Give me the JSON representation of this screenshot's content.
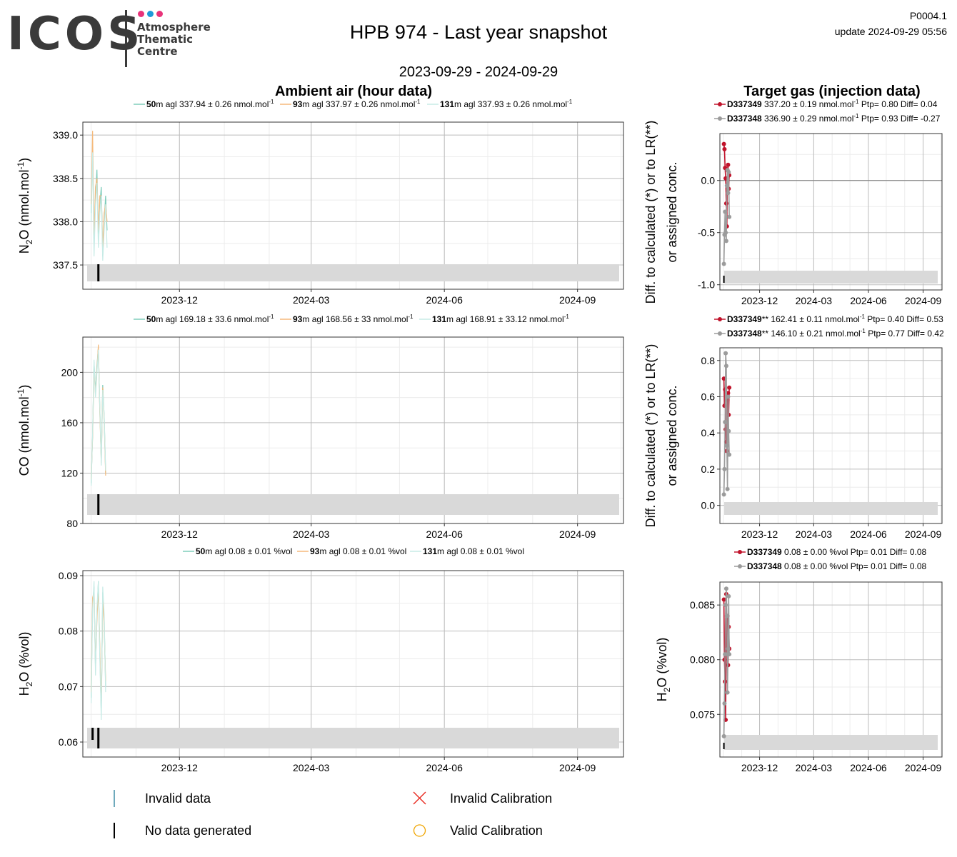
{
  "header": {
    "logo_text": "ICOS",
    "logo_sub": [
      "Atmosphere",
      "Thematic",
      "Centre"
    ],
    "logo_dots": [
      "#e8337a",
      "#1f9ad8",
      "#e8337a"
    ],
    "title": "HPB 974 - Last year snapshot",
    "date_range": "2023-09-29 - 2024-09-29",
    "code": "P0004.1",
    "update": "update  2024-09-29 05:56"
  },
  "sections": {
    "ambient": "Ambient air (hour data)",
    "target": "Target gas (injection data)"
  },
  "target_ylabel": [
    "Diff. to calculated (*) or to LR(**)",
    "or assigned conc."
  ],
  "colors": {
    "s50": "#7fcdbb",
    "s93": "#f5b97a",
    "s131": "#c7ebe6",
    "d337349": "#c0132b",
    "d337348": "#9b9b9b",
    "band": "#d9d9d9",
    "grid_major": "#bdbdbd",
    "grid_minor": "#ececec"
  },
  "bottom_legend": {
    "invalid_data": "Invalid data",
    "no_data": "No data generated",
    "invalid_cal": "Invalid Calibration",
    "valid_cal": "Valid Calibration"
  },
  "chart_data": [
    {
      "type": "line",
      "ylabel": "N2O (nmol.mol-1)",
      "x_ticks": [
        "2023-12",
        "2024-03",
        "2024-06",
        "2024-09"
      ],
      "xlim": [
        "2023-09-29",
        "2024-09-29"
      ],
      "ylim": [
        337.22,
        339.15
      ],
      "y_ticks": [
        337.5,
        338.0,
        338.5,
        339.0
      ],
      "y_tick_labels": [
        "337.5",
        "338.0",
        "338.5",
        "339.0"
      ],
      "legend": [
        {
          "height": "50",
          "text": "m agl 337.94 ± 0.26 nmol.mol",
          "sup": "-1"
        },
        {
          "height": "93",
          "text": "m agl 337.97 ± 0.26 nmol.mol",
          "sup": "-1"
        },
        {
          "height": "131",
          "text": "m agl 337.93 ± 0.26 nmol.mol",
          "sup": "-1"
        }
      ],
      "series": [
        {
          "name": "50m agl",
          "x": [
            "2023-10-01",
            "2023-10-02",
            "2023-10-03",
            "2023-10-04",
            "2023-10-05",
            "2023-10-06",
            "2023-10-07",
            "2023-10-08",
            "2023-10-09",
            "2023-10-10",
            "2023-10-11",
            "2023-10-12"
          ],
          "y": [
            338.1,
            338.9,
            337.7,
            338.3,
            338.6,
            337.8,
            338.2,
            338.4,
            337.6,
            338.0,
            338.3,
            337.9
          ]
        },
        {
          "name": "93m agl",
          "x": [
            "2023-10-01",
            "2023-10-02",
            "2023-10-03",
            "2023-10-04",
            "2023-10-05",
            "2023-10-06",
            "2023-10-07",
            "2023-10-08",
            "2023-10-09",
            "2023-10-10",
            "2023-10-11",
            "2023-10-12"
          ],
          "y": [
            338.2,
            339.05,
            337.8,
            338.4,
            338.5,
            337.9,
            338.3,
            338.3,
            337.7,
            338.1,
            338.2,
            338.0
          ]
        },
        {
          "name": "131m agl",
          "x": [
            "2023-10-01",
            "2023-10-02",
            "2023-10-03",
            "2023-10-04",
            "2023-10-05",
            "2023-10-06",
            "2023-10-07",
            "2023-10-08",
            "2023-10-09",
            "2023-10-10",
            "2023-10-11",
            "2023-10-12"
          ],
          "y": [
            338.0,
            338.8,
            337.6,
            338.2,
            338.45,
            337.7,
            338.1,
            338.3,
            337.55,
            337.9,
            338.2,
            337.7
          ]
        }
      ]
    },
    {
      "type": "line",
      "ylabel": "CO (nmol.mol-1)",
      "x_ticks": [
        "2023-12",
        "2024-03",
        "2024-06",
        "2024-09"
      ],
      "xlim": [
        "2023-09-29",
        "2024-09-29"
      ],
      "ylim": [
        80,
        228
      ],
      "y_ticks": [
        80,
        120,
        160,
        200
      ],
      "y_tick_labels": [
        "80",
        "120",
        "160",
        "200"
      ],
      "legend": [
        {
          "height": "50",
          "text": "m agl 169.18 ± 33.6 nmol.mol",
          "sup": "-1"
        },
        {
          "height": "93",
          "text": "m agl 168.56 ± 33 nmol.mol",
          "sup": "-1"
        },
        {
          "height": "131",
          "text": "m agl 168.91 ± 33.12 nmol.mol",
          "sup": "-1"
        }
      ],
      "series": [
        {
          "name": "50m agl",
          "x": [
            "2023-10-01",
            "2023-10-02",
            "2023-10-03",
            "2023-10-04",
            "2023-10-05",
            "2023-10-06",
            "2023-10-07",
            "2023-10-08",
            "2023-10-09",
            "2023-10-10",
            "2023-10-11"
          ],
          "y": [
            112,
            150,
            208,
            185,
            205,
            220,
            170,
            130,
            190,
            165,
            120
          ]
        },
        {
          "name": "93m agl",
          "x": [
            "2023-10-01",
            "2023-10-02",
            "2023-10-03",
            "2023-10-04",
            "2023-10-05",
            "2023-10-06",
            "2023-10-07",
            "2023-10-08",
            "2023-10-09",
            "2023-10-10",
            "2023-10-11"
          ],
          "y": [
            115,
            148,
            205,
            182,
            202,
            222,
            168,
            128,
            188,
            163,
            118
          ]
        },
        {
          "name": "131m agl",
          "x": [
            "2023-10-01",
            "2023-10-02",
            "2023-10-03",
            "2023-10-04",
            "2023-10-05",
            "2023-10-06",
            "2023-10-07",
            "2023-10-08",
            "2023-10-09",
            "2023-10-10",
            "2023-10-11"
          ],
          "y": [
            110,
            152,
            210,
            180,
            200,
            218,
            172,
            126,
            186,
            166,
            122
          ]
        }
      ]
    },
    {
      "type": "line",
      "ylabel": "H2O (%vol)",
      "x_ticks": [
        "2023-12",
        "2024-03",
        "2024-06",
        "2024-09"
      ],
      "xlim": [
        "2023-09-29",
        "2024-09-29"
      ],
      "ylim": [
        0.0573,
        0.0909
      ],
      "y_ticks": [
        0.06,
        0.07,
        0.08,
        0.09
      ],
      "y_tick_labels": [
        "0.06",
        "0.07",
        "0.08",
        "0.09"
      ],
      "legend": [
        {
          "height": "50",
          "text": "m agl 0.08 ± 0.01 %vol",
          "sup": ""
        },
        {
          "height": "93",
          "text": "m agl 0.08 ± 0.01 %vol",
          "sup": ""
        },
        {
          "height": "131",
          "text": "m agl 0.08 ± 0.01 %vol",
          "sup": ""
        }
      ],
      "series": [
        {
          "name": "50m agl",
          "x": [
            "2023-10-01",
            "2023-10-02",
            "2023-10-03",
            "2023-10-04",
            "2023-10-05",
            "2023-10-06",
            "2023-10-07",
            "2023-10-08",
            "2023-10-09",
            "2023-10-10",
            "2023-10-11"
          ],
          "y": [
            0.068,
            0.085,
            0.088,
            0.073,
            0.083,
            0.089,
            0.076,
            0.065,
            0.087,
            0.082,
            0.07
          ]
        },
        {
          "name": "93m agl",
          "x": [
            "2023-10-01",
            "2023-10-02",
            "2023-10-03",
            "2023-10-04",
            "2023-10-05",
            "2023-10-06",
            "2023-10-07",
            "2023-10-08",
            "2023-10-09",
            "2023-10-10",
            "2023-10-11"
          ],
          "y": [
            0.069,
            0.086,
            0.087,
            0.074,
            0.082,
            0.088,
            0.077,
            0.066,
            0.086,
            0.081,
            0.071
          ]
        },
        {
          "name": "131m agl",
          "x": [
            "2023-10-01",
            "2023-10-02",
            "2023-10-03",
            "2023-10-04",
            "2023-10-05",
            "2023-10-06",
            "2023-10-07",
            "2023-10-08",
            "2023-10-09",
            "2023-10-10",
            "2023-10-11"
          ],
          "y": [
            0.067,
            0.084,
            0.089,
            0.072,
            0.084,
            0.089,
            0.075,
            0.064,
            0.088,
            0.083,
            0.069
          ]
        }
      ]
    },
    {
      "type": "line",
      "ylabel": "",
      "x_ticks": [
        "2023-12",
        "2024-03",
        "2024-06",
        "2024-09"
      ],
      "xlim": [
        "2023-09-29",
        "2024-09-29"
      ],
      "ylim": [
        -1.05,
        0.45
      ],
      "y_ticks": [
        -1.0,
        -0.5,
        0.0
      ],
      "y_tick_labels": [
        "-1.0",
        "-0.5",
        "0.0"
      ],
      "zero_line": true,
      "legend": [
        {
          "name": "D337349",
          "text": "337.20 ± 0.19 nmol.mol",
          "sup": "-1",
          "suffix": "Ptp= 0.80 Diff= 0.04"
        },
        {
          "name": "D337348",
          "text": "336.90 ± 0.29 nmol.mol",
          "sup": "-1",
          "suffix": "Ptp= 0.93 Diff= -0.27"
        }
      ],
      "series": [
        {
          "name": "D337349",
          "x": [
            "2023-10-02",
            "2023-10-03",
            "2023-10-04",
            "2023-10-05",
            "2023-10-06",
            "2023-10-07",
            "2023-10-08",
            "2023-10-09",
            "2023-10-10",
            "2023-10-11"
          ],
          "y": [
            0.35,
            0.3,
            0.12,
            0.02,
            -0.22,
            -0.44,
            0.1,
            0.15,
            -0.08,
            0.05
          ]
        },
        {
          "name": "D337348",
          "x": [
            "2023-10-02",
            "2023-10-03",
            "2023-10-04",
            "2023-10-05",
            "2023-10-06",
            "2023-10-07",
            "2023-10-08",
            "2023-10-09",
            "2023-10-10",
            "2023-10-11"
          ],
          "y": [
            -0.8,
            -0.52,
            -0.3,
            -0.5,
            -0.58,
            -0.05,
            0.1,
            -0.12,
            0.08,
            -0.35
          ]
        }
      ]
    },
    {
      "type": "line",
      "ylabel": "",
      "x_ticks": [
        "2023-12",
        "2024-03",
        "2024-06",
        "2024-09"
      ],
      "xlim": [
        "2023-09-29",
        "2024-09-29"
      ],
      "ylim": [
        -0.1,
        0.87
      ],
      "y_ticks": [
        0.0,
        0.2,
        0.4,
        0.6,
        0.8
      ],
      "y_tick_labels": [
        "0.0",
        "0.2",
        "0.4",
        "0.6",
        "0.8"
      ],
      "legend": [
        {
          "name": "D337349",
          "stars": "**",
          "text": " 162.41 ± 0.11 nmol.mol",
          "sup": "-1",
          "suffix": "Ptp= 0.40 Diff= 0.53"
        },
        {
          "name": "D337348",
          "stars": "**",
          "text": " 146.10 ± 0.21 nmol.mol",
          "sup": "-1",
          "suffix": "Ptp= 0.77 Diff= 0.42"
        }
      ],
      "series": [
        {
          "name": "D337349",
          "x": [
            "2023-10-02",
            "2023-10-03",
            "2023-10-04",
            "2023-10-05",
            "2023-10-06",
            "2023-10-07",
            "2023-10-08",
            "2023-10-09",
            "2023-10-10",
            "2023-10-11"
          ],
          "y": [
            0.7,
            0.55,
            0.64,
            0.42,
            0.35,
            0.3,
            0.58,
            0.62,
            0.5,
            0.65
          ]
        },
        {
          "name": "D337348",
          "x": [
            "2023-10-02",
            "2023-10-03",
            "2023-10-04",
            "2023-10-05",
            "2023-10-06",
            "2023-10-07",
            "2023-10-08",
            "2023-10-09",
            "2023-10-10",
            "2023-10-11"
          ],
          "y": [
            0.06,
            0.2,
            0.46,
            0.84,
            0.77,
            0.33,
            0.09,
            0.6,
            0.41,
            0.28
          ]
        }
      ]
    },
    {
      "type": "line",
      "ylabel": "H2O (%vol)",
      "x_ticks": [
        "2023-12",
        "2024-03",
        "2024-06",
        "2024-09"
      ],
      "xlim": [
        "2023-09-29",
        "2024-09-29"
      ],
      "ylim": [
        0.0711,
        0.0871
      ],
      "y_ticks": [
        0.075,
        0.08,
        0.085
      ],
      "y_tick_labels": [
        "0.075",
        "0.080",
        "0.085"
      ],
      "legend": [
        {
          "name": "D337349",
          "text": "0.08 ± 0.00 %vol",
          "sup": "",
          "suffix": "Ptp= 0.01 Diff= 0.08"
        },
        {
          "name": "D337348",
          "text": "0.08 ± 0.00 %vol",
          "sup": "",
          "suffix": "Ptp= 0.01 Diff= 0.08"
        }
      ],
      "series": [
        {
          "name": "D337349",
          "x": [
            "2023-10-02",
            "2023-10-03",
            "2023-10-04",
            "2023-10-05",
            "2023-10-06",
            "2023-10-07",
            "2023-10-08",
            "2023-10-09",
            "2023-10-10",
            "2023-10-11"
          ],
          "y": [
            0.0855,
            0.08,
            0.078,
            0.0745,
            0.086,
            0.082,
            0.084,
            0.0795,
            0.083,
            0.081
          ]
        },
        {
          "name": "D337348",
          "x": [
            "2023-10-02",
            "2023-10-03",
            "2023-10-04",
            "2023-10-05",
            "2023-10-06",
            "2023-10-07",
            "2023-10-08",
            "2023-10-09",
            "2023-10-10",
            "2023-10-11"
          ],
          "y": [
            0.073,
            0.076,
            0.0805,
            0.085,
            0.0865,
            0.084,
            0.077,
            0.081,
            0.0858,
            0.0805
          ]
        }
      ]
    }
  ]
}
